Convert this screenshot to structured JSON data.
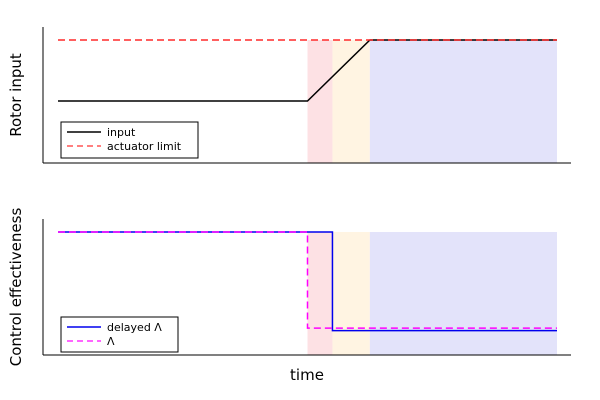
{
  "chart_data": [
    {
      "type": "line",
      "panel": "top",
      "ylabel": "Rotor input",
      "xlabel": "",
      "xlim": [
        0,
        100
      ],
      "ylim": [
        0,
        1
      ],
      "grid": false,
      "legend_position": "lower-left",
      "shaded_regions": [
        {
          "x_start": 50.0,
          "x_end": 55.0,
          "color": "#fde1e4"
        },
        {
          "x_start": 55.0,
          "x_end": 62.5,
          "color": "#fff4e2"
        },
        {
          "x_start": 62.5,
          "x_end": 100.0,
          "color": "#e3e3fa"
        }
      ],
      "series": [
        {
          "name": "input",
          "color": "#000000",
          "dash": "solid",
          "x": [
            0,
            50,
            62.5,
            100
          ],
          "y": [
            0.5,
            0.5,
            1.0,
            1.0
          ]
        },
        {
          "name": "actuator limit",
          "color": "#ff2a2a",
          "dash": "dashed",
          "x": [
            0,
            100
          ],
          "y": [
            1.0,
            1.0
          ]
        }
      ]
    },
    {
      "type": "line",
      "panel": "bottom",
      "ylabel": "Control effectiveness",
      "xlabel": "time",
      "xlim": [
        0,
        100
      ],
      "ylim": [
        0,
        1
      ],
      "grid": false,
      "legend_position": "lower-left",
      "shaded_regions": [
        {
          "x_start": 50.0,
          "x_end": 55.0,
          "color": "#fde1e4"
        },
        {
          "x_start": 55.0,
          "x_end": 62.5,
          "color": "#fff4e2"
        },
        {
          "x_start": 62.5,
          "x_end": 100.0,
          "color": "#e3e3fa"
        }
      ],
      "series": [
        {
          "name": "delayed Λ",
          "color": "#0000ee",
          "dash": "solid",
          "x": [
            0,
            55,
            55,
            100
          ],
          "y": [
            1.0,
            1.0,
            0.2,
            0.2
          ]
        },
        {
          "name": "Λ",
          "color": "#ff00ff",
          "dash": "dashed",
          "x": [
            0,
            50,
            50,
            100
          ],
          "y": [
            1.0,
            1.0,
            0.22,
            0.22
          ]
        }
      ]
    }
  ]
}
